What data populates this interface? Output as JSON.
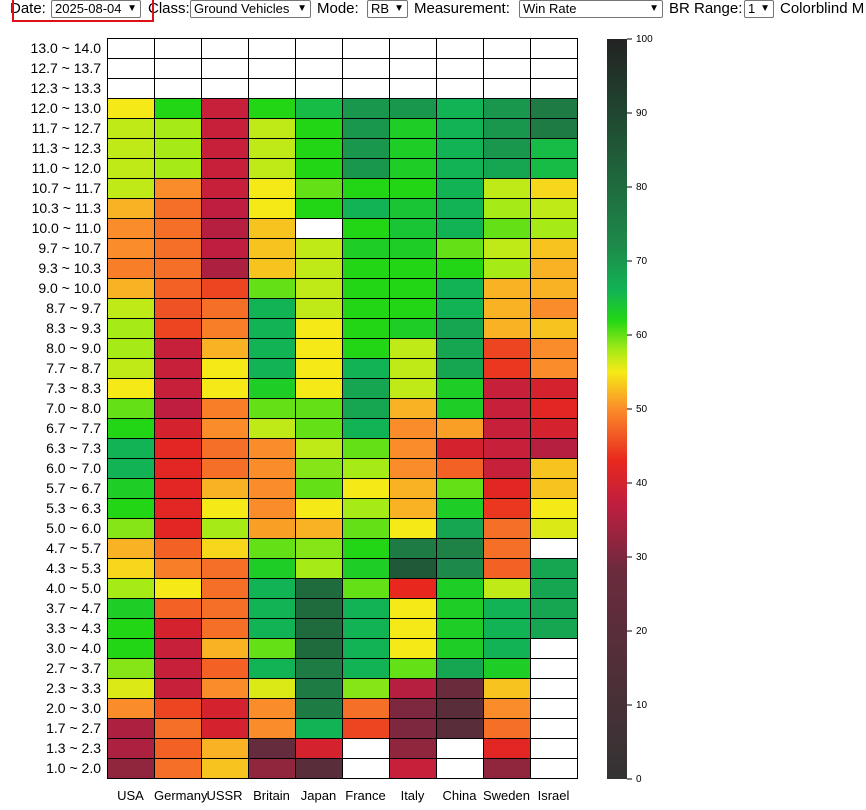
{
  "toolbar": {
    "date_label": "Date:",
    "date_value": "2025-08-04",
    "class_label": "Class:",
    "class_value": "Ground Vehicles",
    "mode_label": "Mode:",
    "mode_value": "RB",
    "measurement_label": "Measurement:",
    "measurement_value": "Win Rate",
    "br_range_label": "BR Range:",
    "br_range_value": "1",
    "colorblind_label": "Colorblind M"
  },
  "chart_data": {
    "type": "heatmap",
    "x_categories": [
      "USA",
      "Germany",
      "USSR",
      "Britain",
      "Japan",
      "France",
      "Italy",
      "China",
      "Sweden",
      "Israel"
    ],
    "y_categories": [
      "13.0 ~ 14.0",
      "12.7 ~ 13.7",
      "12.3 ~ 13.3",
      "12.0 ~ 13.0",
      "11.7 ~ 12.7",
      "11.3 ~ 12.3",
      "11.0 ~ 12.0",
      "10.7 ~ 11.7",
      "10.3 ~ 11.3",
      "10.0 ~ 11.0",
      "9.7 ~ 10.7",
      "9.3 ~ 10.3",
      "9.0 ~ 10.0",
      "8.7 ~ 9.7",
      "8.3 ~ 9.3",
      "8.0 ~ 9.0",
      "7.7 ~ 8.7",
      "7.3 ~ 8.3",
      "7.0 ~ 8.0",
      "6.7 ~ 7.7",
      "6.3 ~ 7.3",
      "6.0 ~ 7.0",
      "5.7 ~ 6.7",
      "5.3 ~ 6.3",
      "5.0 ~ 6.0",
      "4.7 ~ 5.7",
      "4.3 ~ 5.3",
      "4.0 ~ 5.0",
      "3.7 ~ 4.7",
      "3.3 ~ 4.3",
      "3.0 ~ 4.0",
      "2.7 ~ 3.7",
      "2.3 ~ 3.3",
      "2.0 ~ 3.0",
      "1.7 ~ 2.7",
      "1.3 ~ 2.3",
      "1.0 ~ 2.0"
    ],
    "values": [
      [
        null,
        null,
        null,
        null,
        null,
        null,
        null,
        null,
        null,
        null
      ],
      [
        null,
        null,
        null,
        null,
        null,
        null,
        null,
        null,
        null,
        null
      ],
      [
        null,
        null,
        null,
        null,
        null,
        null,
        null,
        null,
        null,
        null
      ],
      [
        55,
        62,
        38,
        62,
        65,
        70,
        70,
        66,
        70,
        76
      ],
      [
        57,
        58,
        38,
        57,
        62,
        70,
        63,
        66,
        70,
        76
      ],
      [
        57,
        58,
        38,
        57,
        62,
        70,
        63,
        66,
        70,
        65
      ],
      [
        57,
        58,
        38,
        57,
        62,
        70,
        63,
        66,
        68,
        65
      ],
      [
        57,
        50,
        38,
        55,
        60,
        62,
        62,
        66,
        57,
        54
      ],
      [
        52,
        48,
        37,
        55,
        62,
        66,
        64,
        66,
        58,
        57
      ],
      [
        50,
        48,
        36,
        53,
        null,
        62,
        64,
        66,
        60,
        58
      ],
      [
        50,
        48,
        37,
        53,
        57,
        63,
        63,
        60,
        57,
        53
      ],
      [
        49,
        48,
        35,
        53,
        57,
        62,
        62,
        62,
        58,
        52
      ],
      [
        52,
        47,
        45,
        60,
        57,
        62,
        62,
        66,
        52,
        52
      ],
      [
        57,
        46,
        48,
        66,
        57,
        62,
        62,
        66,
        52,
        50
      ],
      [
        58,
        45,
        49,
        66,
        55,
        62,
        63,
        68,
        52,
        53
      ],
      [
        58,
        38,
        52,
        66,
        55,
        62,
        57,
        68,
        45,
        50
      ],
      [
        57,
        38,
        55,
        66,
        55,
        66,
        57,
        68,
        44,
        50
      ],
      [
        55,
        38,
        55,
        63,
        55,
        68,
        57,
        63,
        38,
        40
      ],
      [
        60,
        37,
        49,
        60,
        60,
        68,
        52,
        63,
        38,
        42
      ],
      [
        62,
        40,
        50,
        57,
        60,
        66,
        50,
        51,
        38,
        40
      ],
      [
        66,
        42,
        48,
        50,
        57,
        60,
        50,
        40,
        38,
        36
      ],
      [
        66,
        42,
        48,
        50,
        59,
        58,
        50,
        47,
        38,
        53
      ],
      [
        63,
        42,
        52,
        50,
        60,
        55,
        52,
        60,
        42,
        53
      ],
      [
        62,
        42,
        55,
        50,
        55,
        58,
        52,
        63,
        44,
        55
      ],
      [
        59,
        42,
        58,
        51,
        52,
        60,
        55,
        68,
        48,
        56
      ],
      [
        52,
        47,
        54,
        60,
        59,
        62,
        76,
        74,
        48,
        null
      ],
      [
        54,
        49,
        48,
        63,
        58,
        63,
        85,
        72,
        47,
        68
      ],
      [
        58,
        55,
        48,
        66,
        80,
        60,
        43,
        63,
        57,
        68
      ],
      [
        63,
        47,
        48,
        66,
        80,
        66,
        55,
        63,
        66,
        68
      ],
      [
        62,
        40,
        48,
        66,
        80,
        66,
        55,
        63,
        66,
        68
      ],
      [
        62,
        38,
        52,
        60,
        80,
        66,
        55,
        63,
        66,
        null
      ],
      [
        59,
        38,
        47,
        66,
        76,
        66,
        60,
        68,
        63,
        null
      ],
      [
        56,
        38,
        50,
        56,
        76,
        59,
        36,
        28,
        53,
        null
      ],
      [
        50,
        45,
        40,
        50,
        76,
        48,
        30,
        20,
        50,
        null
      ],
      [
        35,
        48,
        40,
        50,
        66,
        45,
        30,
        20,
        48,
        null
      ],
      [
        35,
        47,
        52,
        25,
        40,
        null,
        32,
        null,
        42,
        null
      ],
      [
        32,
        48,
        53,
        32,
        20,
        null,
        38,
        null,
        32,
        null
      ]
    ],
    "colorbar": {
      "min": 0,
      "max": 100,
      "ticks": [
        "0",
        "10",
        "20",
        "30",
        "40",
        "50",
        "60",
        "70",
        "80",
        "90",
        "100"
      ],
      "stops": [
        [
          0,
          "#333333"
        ],
        [
          28,
          "#6a2b3d"
        ],
        [
          37,
          "#bf1e40"
        ],
        [
          43,
          "#e8281e"
        ],
        [
          50,
          "#fb8c2a"
        ],
        [
          55,
          "#f5ea18"
        ],
        [
          58,
          "#a6ea16"
        ],
        [
          62,
          "#22d616"
        ],
        [
          66,
          "#12b354"
        ],
        [
          72,
          "#1d8a4a"
        ],
        [
          80,
          "#1f6b3e"
        ],
        [
          100,
          "#222222"
        ]
      ]
    }
  }
}
